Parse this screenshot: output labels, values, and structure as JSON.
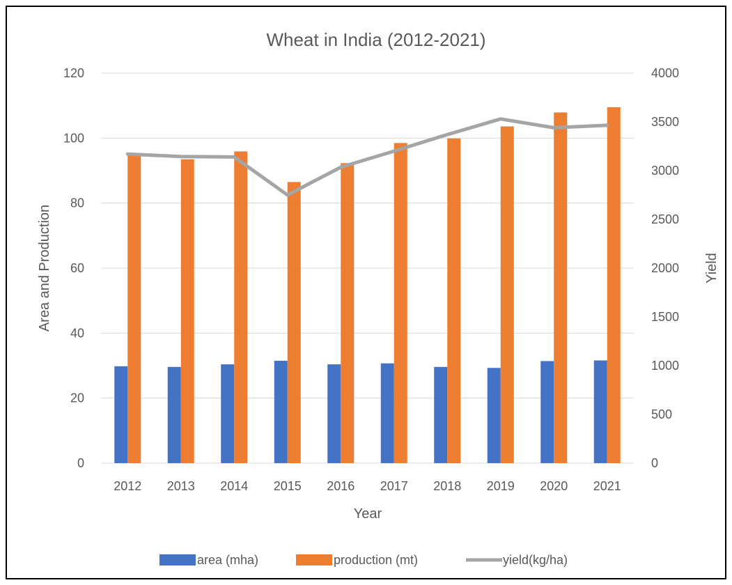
{
  "chart_data": {
    "type": "bar",
    "title": "Wheat in India (2012-2021)",
    "xlabel": "Year",
    "ylabel_left": "Area and Production",
    "ylabel_right": "Yield",
    "categories": [
      "2012",
      "2013",
      "2014",
      "2015",
      "2016",
      "2017",
      "2018",
      "2019",
      "2020",
      "2021"
    ],
    "y_left": {
      "min": 0,
      "max": 120,
      "ticks": [
        0,
        20,
        40,
        60,
        80,
        100,
        120
      ]
    },
    "y_right": {
      "min": 0,
      "max": 4000,
      "ticks": [
        0,
        500,
        1000,
        1500,
        2000,
        2500,
        3000,
        3500,
        4000
      ]
    },
    "grid": true,
    "legend_position": "bottom",
    "series": [
      {
        "name": "area (mha)",
        "kind": "bar",
        "axis": "left",
        "color": "#4472C4",
        "values": [
          29.8,
          29.6,
          30.4,
          31.5,
          30.4,
          30.7,
          29.6,
          29.3,
          31.4,
          31.6
        ]
      },
      {
        "name": "production (mt)",
        "kind": "bar",
        "axis": "left",
        "color": "#ED7D31",
        "values": [
          94.9,
          93.5,
          95.9,
          86.5,
          92.3,
          98.5,
          99.9,
          103.6,
          107.9,
          109.5
        ]
      },
      {
        "name": "yield(kg/ha)",
        "kind": "line",
        "axis": "right",
        "color": "#A5A5A5",
        "values": [
          3170,
          3145,
          3140,
          2750,
          3035,
          3200,
          3370,
          3530,
          3440,
          3465
        ]
      }
    ]
  }
}
